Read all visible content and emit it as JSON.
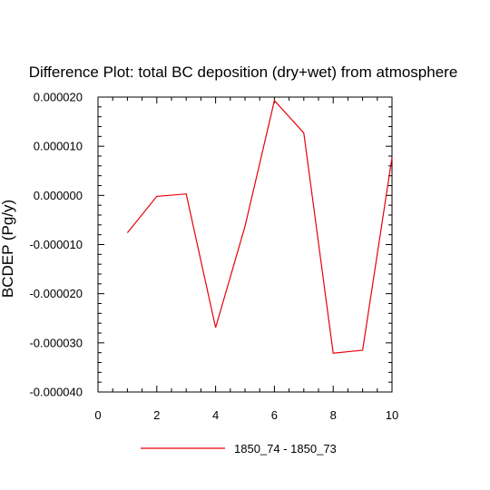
{
  "chart_data": {
    "type": "line",
    "title": "Difference Plot: total BC deposition (dry+wet) from atmosphere",
    "xlabel": "",
    "ylabel": "BCDEP (Pg/y)",
    "xlim": [
      0,
      10
    ],
    "ylim": [
      -4e-05,
      2e-05
    ],
    "xticks": [
      0,
      2,
      4,
      6,
      8,
      10
    ],
    "xtick_labels": [
      "0",
      "2",
      "4",
      "6",
      "8",
      "10"
    ],
    "yticks": [
      -4e-05,
      -3e-05,
      -2e-05,
      -1e-05,
      0,
      1e-05,
      2e-05
    ],
    "ytick_labels": [
      "-0.000040",
      "-0.000030",
      "-0.000020",
      "-0.000010",
      "0.000000",
      "0.000010",
      "0.000020"
    ],
    "grid": false,
    "legend_position": "bottom",
    "series": [
      {
        "name": "1850_74 - 1850_73",
        "color": "#e8000b",
        "x": [
          1,
          2,
          3,
          4,
          5,
          6,
          7,
          8,
          9,
          10
        ],
        "y": [
          -7.6e-06,
          -2e-07,
          3e-07,
          -2.69e-05,
          -6.3e-06,
          1.93e-05,
          1.27e-05,
          -3.21e-05,
          -3.15e-05,
          7.7e-06
        ]
      }
    ]
  }
}
